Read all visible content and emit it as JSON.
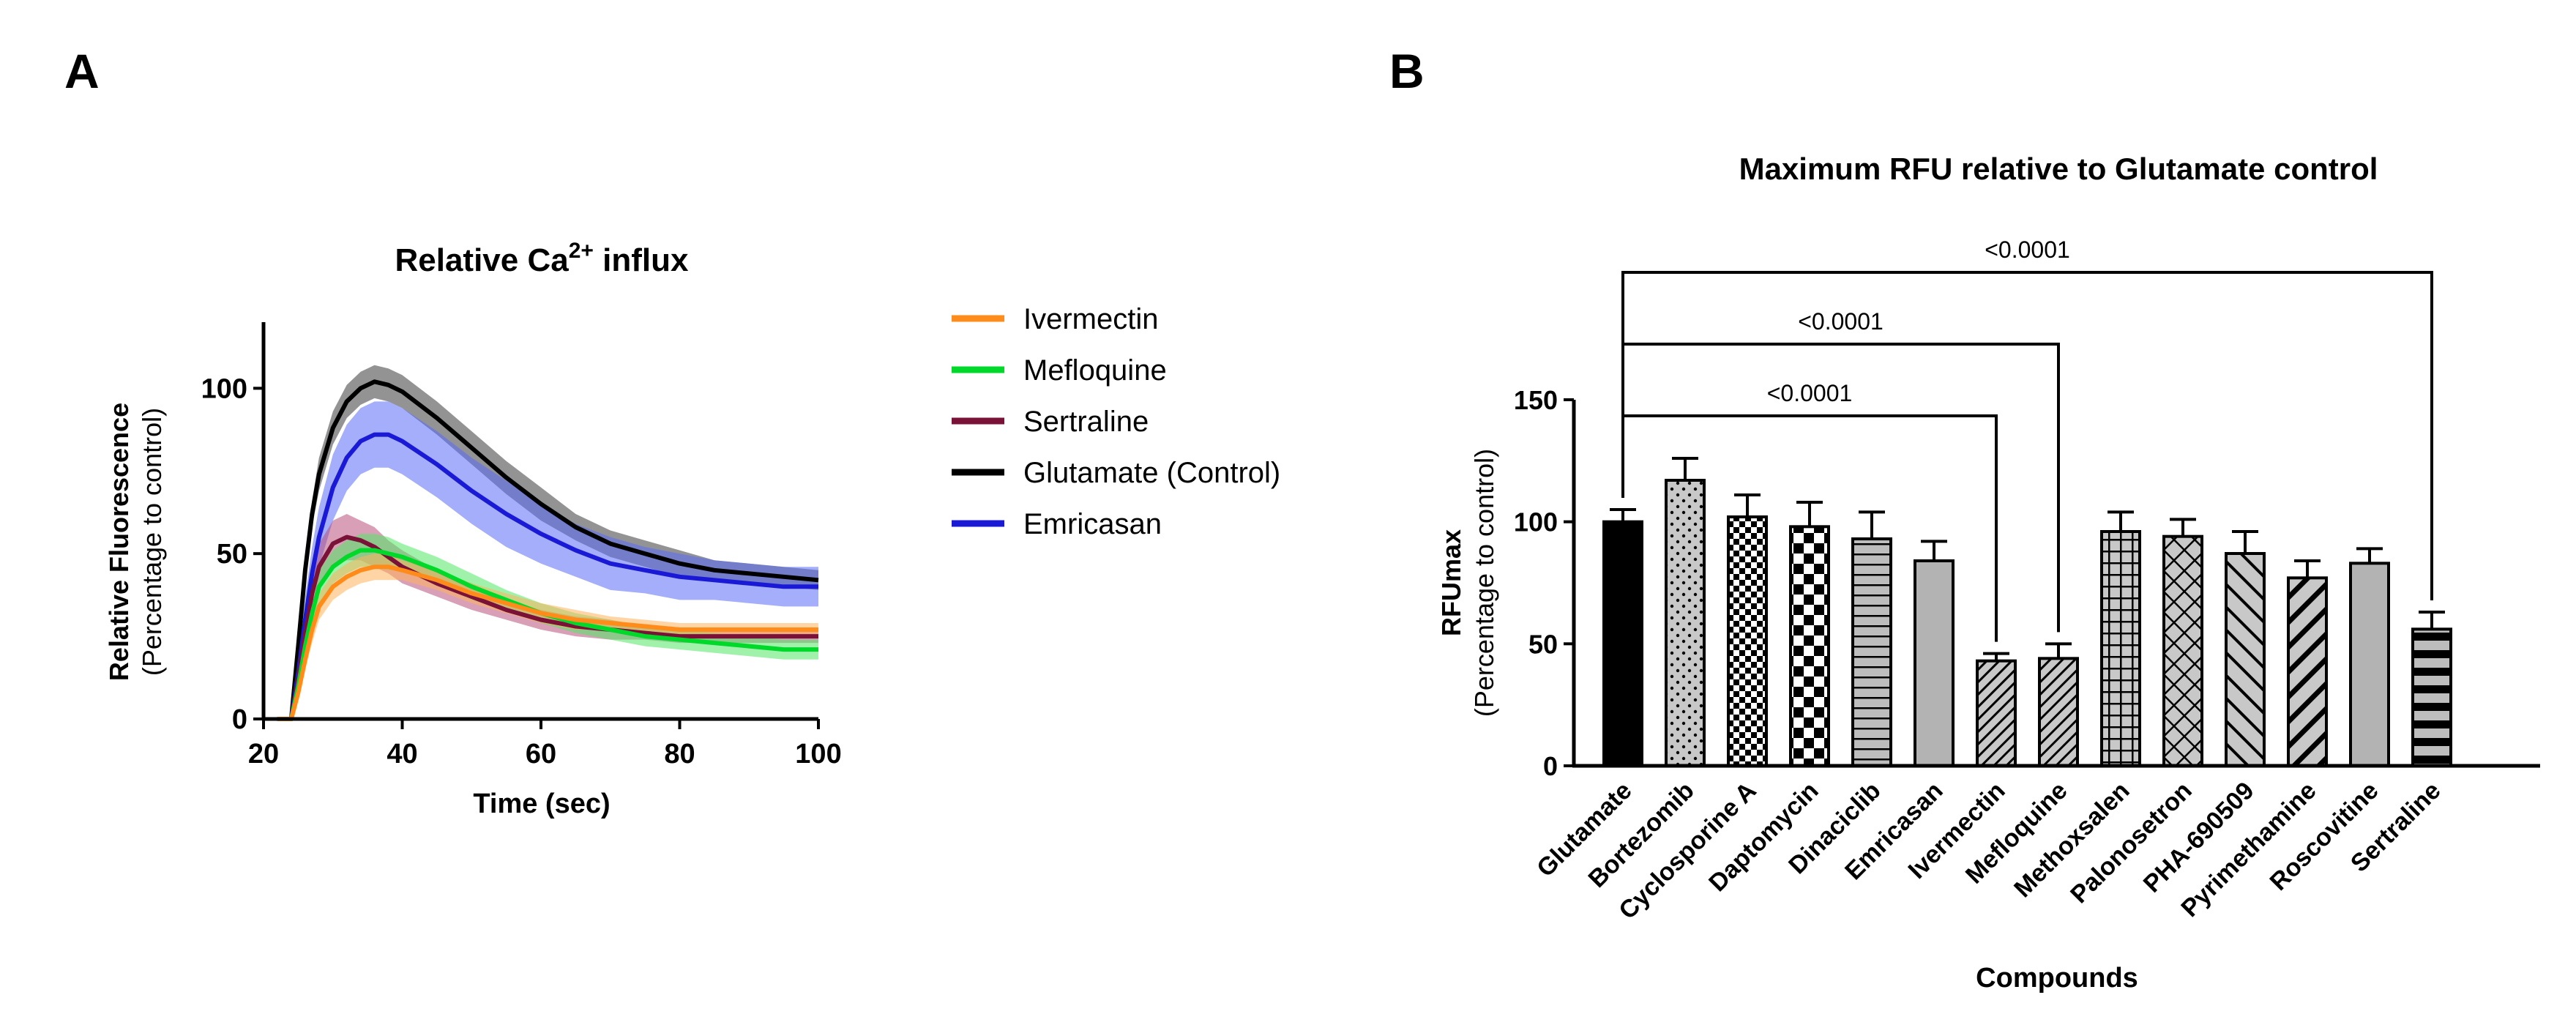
{
  "panels": {
    "a": "A",
    "b": "B"
  },
  "chart_data": [
    {
      "type": "line",
      "title_main": "Relative Ca",
      "title_sup": "2+",
      "title_rest": " influx",
      "ylabel": "Relative Fluorescence",
      "ylabel2": "(Percentage to control)",
      "xlabel": "Time (sec)",
      "xlim": [
        20,
        100
      ],
      "ylim": [
        0,
        120
      ],
      "xticks": [
        20,
        40,
        60,
        80,
        100
      ],
      "yticks": [
        0,
        50,
        100
      ],
      "series": [
        {
          "name": "Glutamate (Control)",
          "color": "#000000",
          "error_color": "#3a3a3a",
          "x": [
            22,
            24,
            25,
            26,
            27,
            28,
            30,
            32,
            34,
            36,
            38,
            40,
            45,
            50,
            55,
            60,
            65,
            70,
            75,
            80,
            85,
            90,
            95,
            100
          ],
          "y": [
            0,
            0,
            22,
            45,
            62,
            74,
            88,
            96,
            100,
            102,
            101,
            99,
            91,
            82,
            73,
            65,
            58,
            53,
            50,
            47,
            45,
            44,
            43,
            42
          ],
          "err": [
            0,
            0,
            3,
            4,
            4,
            5,
            5,
            5,
            5,
            5,
            5,
            5,
            5,
            5,
            5,
            5,
            4,
            4,
            4,
            4,
            3,
            3,
            3,
            3
          ]
        },
        {
          "name": "Emricasan",
          "color": "#1a1ad6",
          "error_color": "#5a6cf5",
          "x": [
            22,
            24,
            25,
            26,
            27,
            28,
            30,
            32,
            34,
            36,
            38,
            40,
            45,
            50,
            55,
            60,
            65,
            70,
            75,
            80,
            85,
            90,
            95,
            100
          ],
          "y": [
            0,
            0,
            14,
            30,
            44,
            55,
            70,
            79,
            84,
            86,
            86,
            84,
            77,
            69,
            62,
            56,
            51,
            47,
            45,
            43,
            42,
            41,
            40,
            40
          ],
          "err": [
            0,
            0,
            4,
            7,
            8,
            9,
            10,
            10,
            10,
            10,
            10,
            10,
            10,
            10,
            10,
            9,
            8,
            8,
            7,
            7,
            6,
            6,
            6,
            6
          ]
        },
        {
          "name": "Sertraline",
          "color": "#7a1238",
          "error_color": "#b8507a",
          "x": [
            22,
            24,
            25,
            26,
            27,
            28,
            30,
            32,
            34,
            36,
            38,
            40,
            45,
            50,
            55,
            60,
            65,
            70,
            75,
            80,
            85,
            90,
            95,
            100
          ],
          "y": [
            0,
            0,
            12,
            26,
            38,
            46,
            53,
            55,
            54,
            52,
            49,
            46,
            41,
            37,
            33,
            30,
            28,
            27,
            26,
            25,
            25,
            25,
            25,
            25
          ],
          "err": [
            0,
            0,
            3,
            5,
            6,
            7,
            7,
            7,
            6,
            6,
            5,
            5,
            4,
            4,
            3,
            3,
            3,
            3,
            2,
            2,
            2,
            2,
            2,
            2
          ]
        },
        {
          "name": "Mefloquine",
          "color": "#00d82a",
          "error_color": "#52e866",
          "x": [
            22,
            24,
            25,
            26,
            27,
            28,
            30,
            32,
            34,
            36,
            38,
            40,
            45,
            50,
            55,
            60,
            65,
            70,
            75,
            80,
            85,
            90,
            95,
            100
          ],
          "y": [
            0,
            0,
            10,
            22,
            32,
            40,
            46,
            49,
            51,
            51,
            50,
            49,
            45,
            40,
            36,
            32,
            29,
            27,
            25,
            24,
            23,
            22,
            21,
            21
          ],
          "err": [
            0,
            0,
            3,
            4,
            5,
            5,
            5,
            5,
            5,
            5,
            5,
            4,
            4,
            4,
            3,
            3,
            3,
            3,
            3,
            3,
            3,
            3,
            3,
            3
          ]
        },
        {
          "name": "Ivermectin",
          "color": "#ff8c1a",
          "error_color": "#ffb25c",
          "x": [
            22,
            24,
            25,
            26,
            27,
            28,
            30,
            32,
            34,
            36,
            38,
            40,
            45,
            50,
            55,
            60,
            65,
            70,
            75,
            80,
            85,
            90,
            95,
            100
          ],
          "y": [
            0,
            0,
            8,
            18,
            27,
            34,
            40,
            43,
            45,
            46,
            46,
            45,
            42,
            38,
            35,
            32,
            30,
            29,
            28,
            27,
            27,
            27,
            27,
            27
          ],
          "err": [
            0,
            0,
            2,
            3,
            4,
            4,
            4,
            4,
            4,
            4,
            4,
            3,
            3,
            3,
            3,
            3,
            3,
            2,
            2,
            2,
            2,
            2,
            2,
            2
          ]
        }
      ],
      "legend_order": [
        "Ivermectin",
        "Mefloquine",
        "Sertraline",
        "Glutamate (Control)",
        "Emricasan"
      ]
    },
    {
      "type": "bar",
      "title": "Maximum RFU relative to Glutamate control",
      "ylabel": "RFUmax",
      "ylabel2": "(Percentage to control)",
      "xlabel": "Compounds",
      "ylim": [
        0,
        150
      ],
      "yticks": [
        0,
        50,
        100,
        150
      ],
      "categories": [
        "Glutamate",
        "Bortezomib",
        "Cyclosporine A",
        "Daptomycin",
        "Dinaciclib",
        "Emricasan",
        "Ivermectin",
        "Mefloquine",
        "Methoxsalen",
        "Palonosetron",
        "PHA-690509",
        "Pyrimethamine",
        "Roscovitine",
        "Sertraline"
      ],
      "values": [
        100,
        117,
        102,
        98,
        93,
        84,
        43,
        44,
        96,
        94,
        87,
        77,
        83,
        56
      ],
      "errors": [
        5,
        9,
        9,
        10,
        11,
        8,
        3,
        6,
        8,
        7,
        9,
        7,
        6,
        7
      ],
      "patterns": [
        "solid",
        "dots",
        "checker-small",
        "checker-large",
        "hlines",
        "solid-gray",
        "diag-dense",
        "diag-dense",
        "grid",
        "diag-cross",
        "diag-wide",
        "diag-bold",
        "solid-gray",
        "hbars"
      ],
      "comparisons": [
        {
          "from": "Glutamate",
          "to": "Ivermectin",
          "label": "<0.0001"
        },
        {
          "from": "Glutamate",
          "to": "Mefloquine",
          "label": "<0.0001"
        },
        {
          "from": "Glutamate",
          "to": "Sertraline",
          "label": "<0.0001"
        }
      ]
    }
  ]
}
